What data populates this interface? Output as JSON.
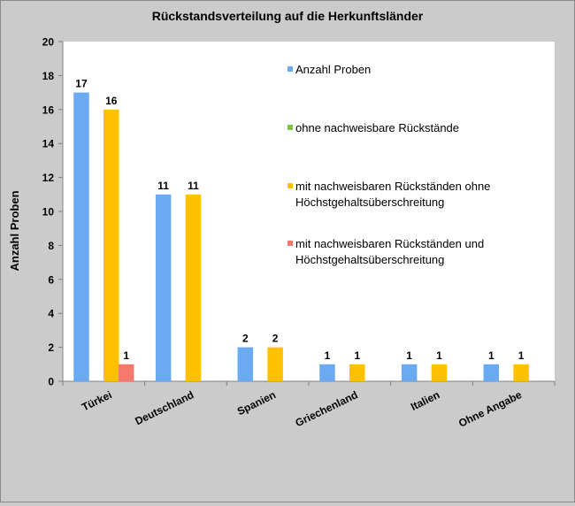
{
  "chart_data": {
    "type": "bar",
    "title": "Rückstandsverteilung  auf die Herkunftsländer",
    "xlabel": "",
    "ylabel": "Anzahl Proben",
    "ylim": [
      0,
      20
    ],
    "yticks": [
      0,
      2,
      4,
      6,
      8,
      10,
      12,
      14,
      16,
      18,
      20
    ],
    "categories": [
      "Türkei",
      "Deutschland",
      "Spanien",
      "Griechenland",
      "Italien",
      "Ohne Angabe"
    ],
    "series": [
      {
        "name": "Anzahl Proben",
        "color": "#6aaaf2",
        "values": [
          17,
          11,
          2,
          1,
          1,
          1
        ]
      },
      {
        "name": "ohne nachweisbare Rückstände",
        "color": "#84c23e",
        "values": [
          0,
          0,
          0,
          0,
          0,
          0
        ]
      },
      {
        "name": "mit nachweisbaren Rückständen ohne Höchstgehaltsüberschreitung",
        "legend_lines": [
          "mit nachweisbaren Rückständen ohne",
          "Höchstgehaltsüberschreitung"
        ],
        "color": "#ffc000",
        "values": [
          16,
          11,
          2,
          1,
          1,
          1
        ]
      },
      {
        "name": "mit nachweisbaren Rückständen und Höchstgehaltsüberschreitung",
        "legend_lines": [
          "mit nachweisbaren Rückständen und",
          "Höchstgehaltsüberschreitung"
        ],
        "color": "#f47b6b",
        "values": [
          1,
          0,
          0,
          0,
          0,
          0
        ]
      }
    ],
    "grid": false,
    "legend_position": "top-right"
  }
}
